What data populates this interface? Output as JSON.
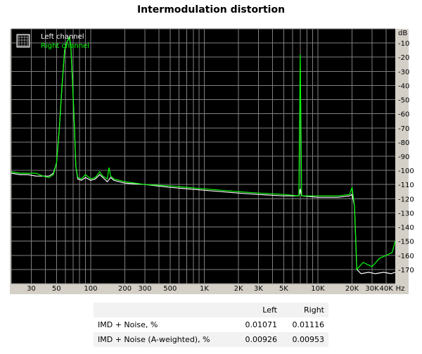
{
  "title": "Intermodulation distortion",
  "chart_data": {
    "type": "line",
    "x_scale": "log",
    "y_unit": "dB",
    "x_unit": "Hz",
    "xlim": [
      20,
      48000
    ],
    "ylim": [
      -180,
      0
    ],
    "grid": true,
    "background": "#000000",
    "legend_position": "top-left",
    "x_ticks": [
      {
        "value": 30,
        "label": "30"
      },
      {
        "value": 50,
        "label": "50"
      },
      {
        "value": 100,
        "label": "100"
      },
      {
        "value": 200,
        "label": "200"
      },
      {
        "value": 300,
        "label": "300"
      },
      {
        "value": 500,
        "label": "500"
      },
      {
        "value": 1000,
        "label": "1K"
      },
      {
        "value": 2000,
        "label": "2K"
      },
      {
        "value": 3000,
        "label": "3K"
      },
      {
        "value": 5000,
        "label": "5K"
      },
      {
        "value": 10000,
        "label": "10K"
      },
      {
        "value": 20000,
        "label": "20K"
      },
      {
        "value": 30000,
        "label": "30K"
      },
      {
        "value": 40000,
        "label": "40K"
      }
    ],
    "x_unit_label": "Hz",
    "y_unit_label": "dB",
    "y_ticks": [
      -10,
      -20,
      -30,
      -40,
      -50,
      -60,
      -70,
      -80,
      -90,
      -100,
      -110,
      -120,
      -130,
      -140,
      -150,
      -160,
      -170
    ],
    "series": [
      {
        "name": "Left channel",
        "color": "#ffffff",
        "points": [
          [
            20,
            -102
          ],
          [
            24,
            -103
          ],
          [
            28,
            -103
          ],
          [
            33,
            -104
          ],
          [
            38,
            -104
          ],
          [
            43,
            -104
          ],
          [
            47,
            -102
          ],
          [
            50,
            -95
          ],
          [
            53,
            -70
          ],
          [
            56,
            -40
          ],
          [
            59,
            -15
          ],
          [
            62,
            -9
          ],
          [
            65,
            -6
          ],
          [
            67,
            -13
          ],
          [
            69,
            -35
          ],
          [
            72,
            -70
          ],
          [
            74,
            -97
          ],
          [
            77,
            -106
          ],
          [
            83,
            -107
          ],
          [
            90,
            -105
          ],
          [
            100,
            -107
          ],
          [
            110,
            -106
          ],
          [
            120,
            -103
          ],
          [
            128,
            -105
          ],
          [
            140,
            -108
          ],
          [
            150,
            -105
          ],
          [
            160,
            -107
          ],
          [
            200,
            -109
          ],
          [
            300,
            -110
          ],
          [
            500,
            -112
          ],
          [
            1000,
            -114
          ],
          [
            2000,
            -116
          ],
          [
            3000,
            -117
          ],
          [
            5000,
            -118
          ],
          [
            6800,
            -118
          ],
          [
            7000,
            -113
          ],
          [
            7200,
            -118
          ],
          [
            10000,
            -119
          ],
          [
            15000,
            -119
          ],
          [
            19000,
            -118
          ],
          [
            20000,
            -117
          ],
          [
            21000,
            -125
          ],
          [
            22000,
            -170
          ],
          [
            24000,
            -173
          ],
          [
            28000,
            -172
          ],
          [
            32000,
            -173
          ],
          [
            38000,
            -172
          ],
          [
            44000,
            -173
          ],
          [
            48000,
            -172
          ]
        ]
      },
      {
        "name": "Right channel",
        "color": "#00ff00",
        "points": [
          [
            20,
            -101
          ],
          [
            24,
            -102
          ],
          [
            28,
            -102
          ],
          [
            33,
            -102
          ],
          [
            38,
            -104
          ],
          [
            43,
            -105
          ],
          [
            47,
            -103
          ],
          [
            50,
            -95
          ],
          [
            53,
            -70
          ],
          [
            56,
            -40
          ],
          [
            59,
            -15
          ],
          [
            62,
            -9
          ],
          [
            65,
            -6
          ],
          [
            67,
            -13
          ],
          [
            69,
            -35
          ],
          [
            72,
            -70
          ],
          [
            74,
            -97
          ],
          [
            77,
            -105
          ],
          [
            83,
            -106
          ],
          [
            90,
            -103
          ],
          [
            100,
            -106
          ],
          [
            110,
            -105
          ],
          [
            120,
            -101
          ],
          [
            128,
            -104
          ],
          [
            140,
            -106
          ],
          [
            145,
            -98
          ],
          [
            150,
            -104
          ],
          [
            160,
            -106
          ],
          [
            200,
            -108
          ],
          [
            300,
            -110
          ],
          [
            500,
            -111
          ],
          [
            1000,
            -113
          ],
          [
            2000,
            -115
          ],
          [
            3000,
            -116
          ],
          [
            5000,
            -117
          ],
          [
            6800,
            -118
          ],
          [
            7000,
            -18
          ],
          [
            7200,
            -118
          ],
          [
            10000,
            -118
          ],
          [
            15000,
            -118
          ],
          [
            19000,
            -117
          ],
          [
            20000,
            -112
          ],
          [
            21000,
            -125
          ],
          [
            22000,
            -170
          ],
          [
            25000,
            -165
          ],
          [
            30000,
            -168
          ],
          [
            35000,
            -162
          ],
          [
            40000,
            -160
          ],
          [
            45000,
            -158
          ],
          [
            48000,
            -150
          ]
        ]
      }
    ],
    "legend": [
      "Left channel",
      "Right channel"
    ]
  },
  "table": {
    "headers": [
      "",
      "Left",
      "Right"
    ],
    "rows": [
      {
        "label": "IMD + Noise, %",
        "left": "0.01071",
        "right": "0.01116"
      },
      {
        "label": "IMD + Noise (A-weighted), %",
        "left": "0.00926",
        "right": "0.00953"
      }
    ]
  },
  "colors": {
    "plot_background": "#000000",
    "frame": "#d4d0c8",
    "grid": "#808080",
    "left_channel": "#ffffff",
    "right_channel": "#00ff00"
  }
}
